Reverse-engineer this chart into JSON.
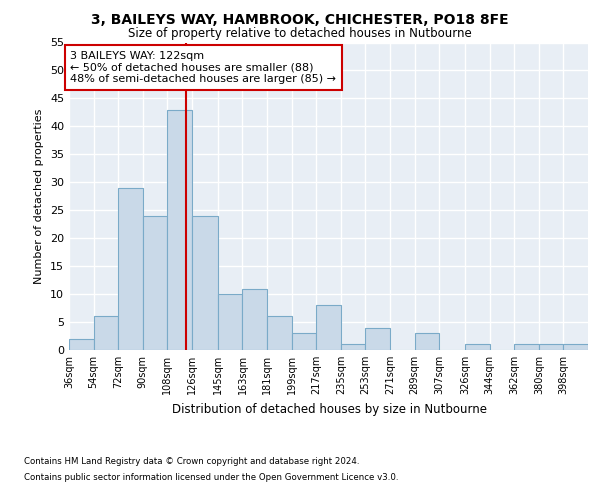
{
  "title1": "3, BAILEYS WAY, HAMBROOK, CHICHESTER, PO18 8FE",
  "title2": "Size of property relative to detached houses in Nutbourne",
  "xlabel": "Distribution of detached houses by size in Nutbourne",
  "ylabel": "Number of detached properties",
  "bar_color": "#c9d9e8",
  "bar_edge_color": "#7aaac8",
  "vline_color": "#cc0000",
  "vline_x": 122,
  "categories": [
    "36sqm",
    "54sqm",
    "72sqm",
    "90sqm",
    "108sqm",
    "126sqm",
    "145sqm",
    "163sqm",
    "181sqm",
    "199sqm",
    "217sqm",
    "235sqm",
    "253sqm",
    "271sqm",
    "289sqm",
    "307sqm",
    "326sqm",
    "344sqm",
    "362sqm",
    "380sqm",
    "398sqm"
  ],
  "bin_edges": [
    36,
    54,
    72,
    90,
    108,
    126,
    145,
    163,
    181,
    199,
    217,
    235,
    253,
    271,
    289,
    307,
    326,
    344,
    362,
    380,
    398
  ],
  "values": [
    2,
    6,
    29,
    24,
    43,
    24,
    10,
    11,
    6,
    3,
    8,
    1,
    4,
    0,
    3,
    0,
    1,
    0,
    1,
    1,
    1
  ],
  "ylim": [
    0,
    55
  ],
  "yticks": [
    0,
    5,
    10,
    15,
    20,
    25,
    30,
    35,
    40,
    45,
    50,
    55
  ],
  "annotation_text": "3 BAILEYS WAY: 122sqm\n← 50% of detached houses are smaller (88)\n48% of semi-detached houses are larger (85) →",
  "annotation_box_color": "#ffffff",
  "annotation_box_edge": "#cc0000",
  "bg_color": "#e8eef5",
  "footer1": "Contains HM Land Registry data © Crown copyright and database right 2024.",
  "footer2": "Contains public sector information licensed under the Open Government Licence v3.0."
}
